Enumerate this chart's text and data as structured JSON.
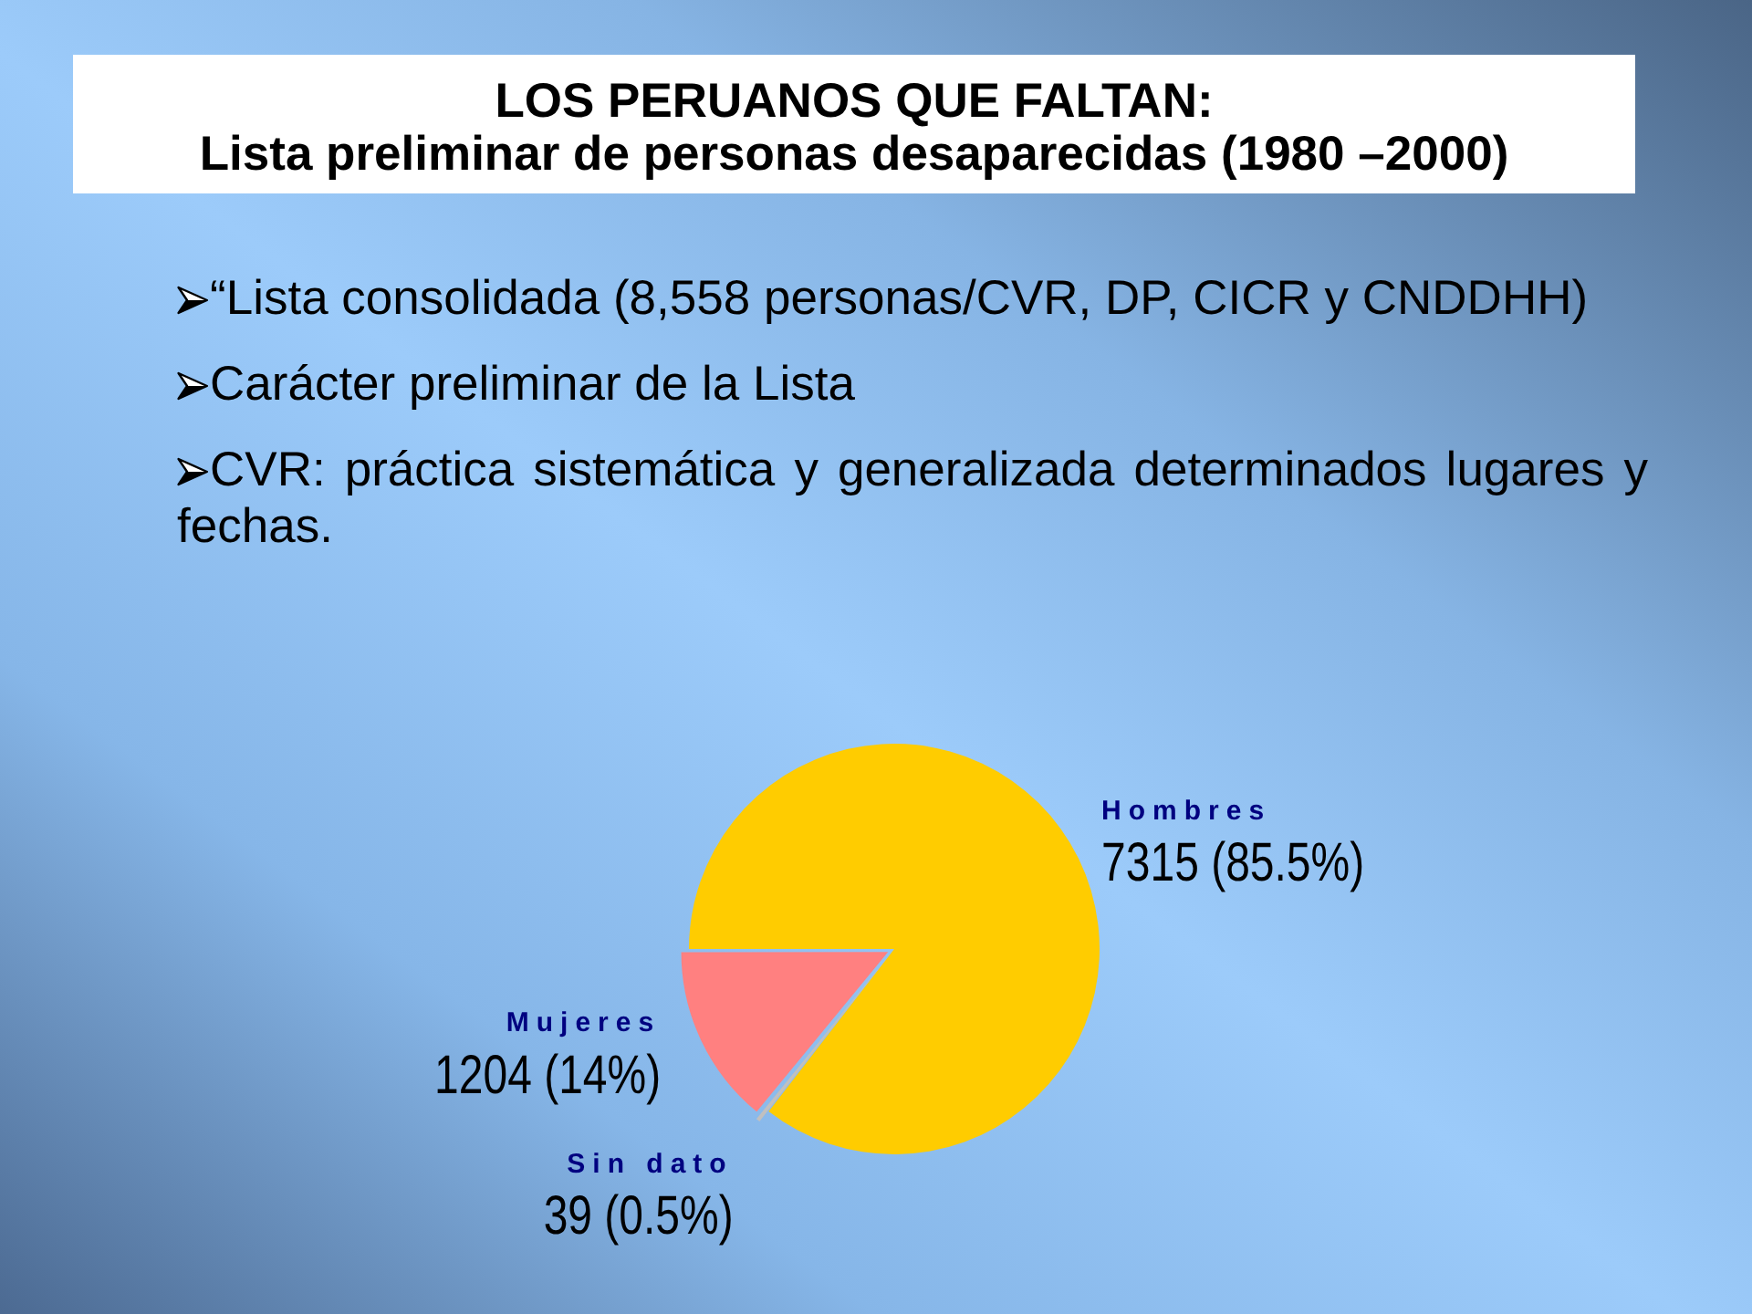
{
  "chart_data": {
    "type": "pie",
    "title": "LOS PERUANOS QUE FALTAN:",
    "subtitle": "Lista preliminar de personas desaparecidas (1980 –2000)",
    "categories": [
      "Hombres",
      "Sin dato",
      "Mujeres"
    ],
    "values": [
      7315,
      39,
      1204
    ],
    "colors": [
      "#ffcc00",
      "#c0c0c0",
      "#ff8080"
    ],
    "value_labels": [
      "7315 (85.5%)",
      "39 (0.5%)",
      "1204 (14%)"
    ],
    "annotations": [
      "“Lista consolidada (8,558 personas/CVR, DP, CICR y CNDDHH)",
      "Carácter preliminar de la Lista",
      "CVR: práctica sistemática y generalizada determinados lugares y fechas."
    ]
  }
}
